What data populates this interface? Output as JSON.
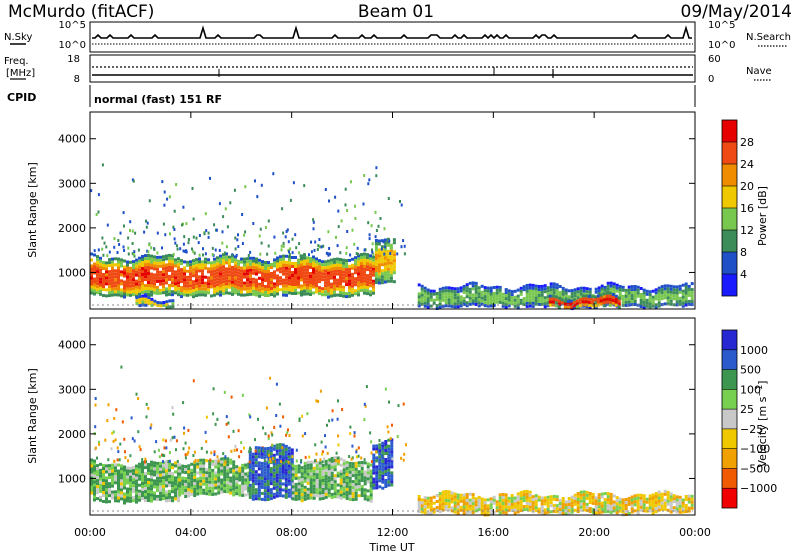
{
  "header": {
    "station": "McMurdo (fitACF)",
    "beam": "Beam 01",
    "date": "09/May/2014"
  },
  "panels": {
    "nsky_label": "N.Sky",
    "nsky_ticks": [
      "10^5",
      "10^0"
    ],
    "nsearch_label": "N.Search",
    "freq_label_1": "Freq.",
    "freq_label_2": "[MHz]",
    "freq_ticks": [
      "18",
      "8"
    ],
    "nave_label": "Nave",
    "nave_ticks": [
      "60",
      "0"
    ],
    "cpid_label": "CPID",
    "cpid_text": "normal (fast) 151 RF"
  },
  "colors": {
    "power_scale": [
      "#1a1aff",
      "#2050c8",
      "#3c8c5a",
      "#78c850",
      "#f0c800",
      "#f08c00",
      "#f04a14",
      "#e60000"
    ],
    "velocity_scale": [
      "#f00000",
      "#f05a00",
      "#f0a000",
      "#f0c800",
      "#c8c8c8",
      "#78d050",
      "#3c9650",
      "#2a5acc",
      "#2828d2"
    ]
  },
  "chart_data": [
    {
      "type": "heatmap",
      "quantity": "Power",
      "ylabel": "Slant Range [km]",
      "xlabel": "Time UT",
      "x_ticks": [
        "00:00",
        "04:00",
        "08:00",
        "12:00",
        "16:00",
        "20:00",
        "00:00"
      ],
      "y_ticks": [
        1000,
        2000,
        3000,
        4000
      ],
      "ylim": [
        180,
        4600
      ],
      "xlim_hours": [
        0,
        24
      ],
      "colorbar": {
        "label": "Power [dB]",
        "ticks": [
          "4",
          "8",
          "12",
          "16",
          "20",
          "24",
          "28"
        ],
        "range": [
          0,
          32
        ]
      },
      "regions": [
        {
          "t0": 0.0,
          "t1": 11.3,
          "r0": 500,
          "r1": 1350,
          "value": 24
        },
        {
          "t0": 11.3,
          "t1": 12.1,
          "r0": 800,
          "r1": 1800,
          "value": 18
        },
        {
          "t0": 1.8,
          "t1": 3.3,
          "r0": 250,
          "r1": 420,
          "value": 16
        },
        {
          "t0": 13.0,
          "t1": 23.9,
          "r0": 250,
          "r1": 700,
          "value": 12
        },
        {
          "t0": 18.2,
          "t1": 21.0,
          "r0": 250,
          "r1": 480,
          "value": 26
        }
      ]
    },
    {
      "type": "heatmap",
      "quantity": "Velocity",
      "ylabel": "Slant Range [km]",
      "xlabel": "Time UT",
      "x_ticks": [
        "00:00",
        "04:00",
        "08:00",
        "12:00",
        "16:00",
        "20:00",
        "00:00"
      ],
      "y_ticks": [
        1000,
        2000,
        3000,
        4000
      ],
      "ylim": [
        180,
        4600
      ],
      "xlim_hours": [
        0,
        24
      ],
      "colorbar": {
        "label": "Velocity [m s^-1]",
        "ticks": [
          "1000",
          "500",
          "100",
          "25",
          "−25",
          "−100",
          "−500",
          "−1000"
        ],
        "range": [
          -1500,
          1500
        ]
      },
      "regions": [
        {
          "t0": 0.0,
          "t1": 3.5,
          "r0": 500,
          "r1": 1350,
          "value": 100
        },
        {
          "t0": 3.5,
          "t1": 6.3,
          "r0": 650,
          "r1": 1400,
          "value": 100
        },
        {
          "t0": 6.3,
          "t1": 8.0,
          "r0": 550,
          "r1": 1700,
          "value": 700
        },
        {
          "t0": 8.0,
          "t1": 11.2,
          "r0": 550,
          "r1": 1400,
          "value": 100
        },
        {
          "t0": 11.2,
          "t1": 12.0,
          "r0": 800,
          "r1": 1800,
          "value": 800
        },
        {
          "t0": 13.0,
          "t1": 23.9,
          "r0": 250,
          "r1": 650,
          "value": -50
        }
      ]
    }
  ]
}
